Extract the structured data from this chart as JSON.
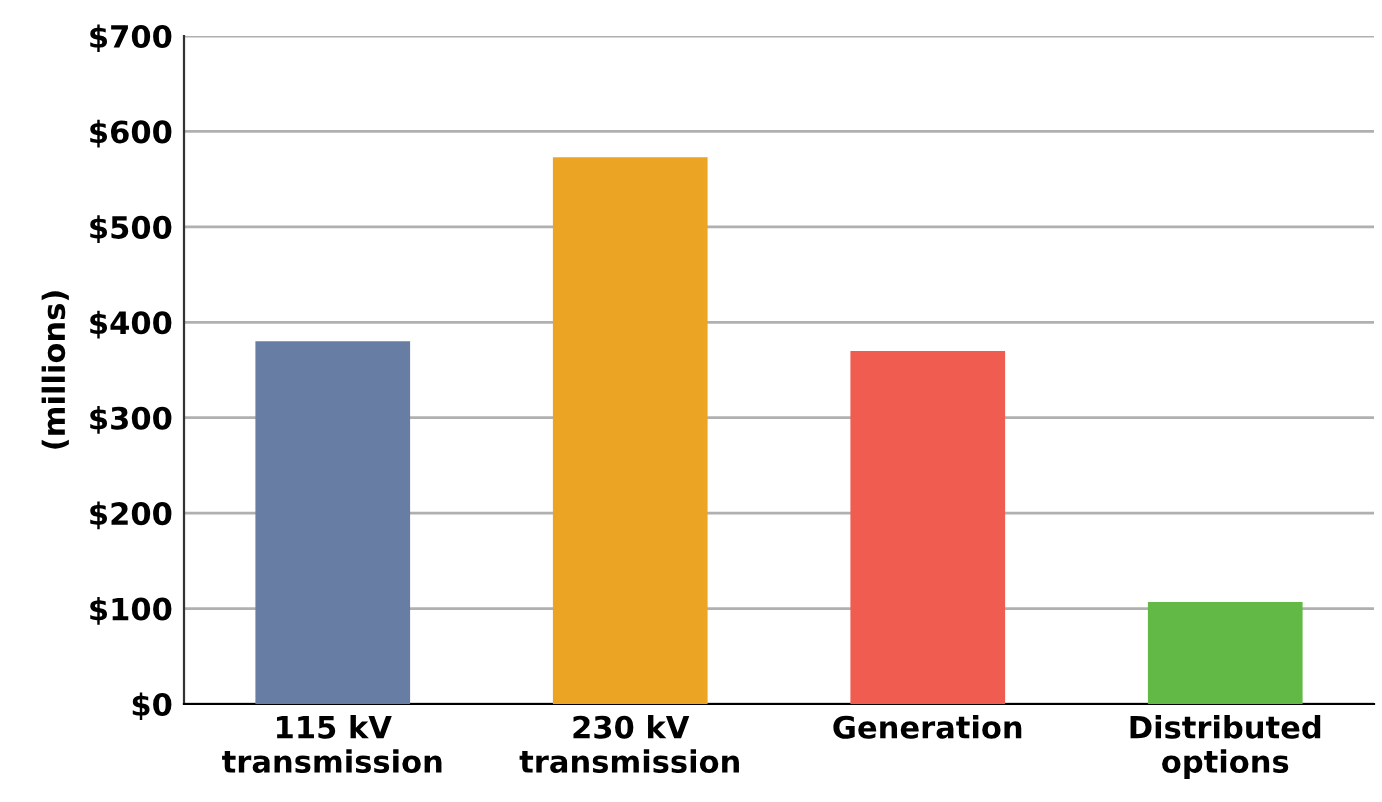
{
  "chart_data": {
    "type": "bar",
    "ylabel": "(millions)",
    "categories": [
      "115 kV\ntransmission",
      "230 kV\ntransmission",
      "Generation",
      "Distributed\noptions"
    ],
    "values": [
      380,
      573,
      370,
      107
    ],
    "colors": [
      "#687da3",
      "#eca424",
      "#f15c50",
      "#62b946"
    ],
    "ylim": [
      0,
      700
    ],
    "yticks": [
      {
        "value": 0,
        "label": "$0"
      },
      {
        "value": 100,
        "label": "$100"
      },
      {
        "value": 200,
        "label": "$200"
      },
      {
        "value": 300,
        "label": "$300"
      },
      {
        "value": 400,
        "label": "$400"
      },
      {
        "value": 500,
        "label": "$500"
      },
      {
        "value": 600,
        "label": "$600"
      },
      {
        "value": 700,
        "label": "$700"
      }
    ],
    "grid": "y",
    "legend": false
  }
}
